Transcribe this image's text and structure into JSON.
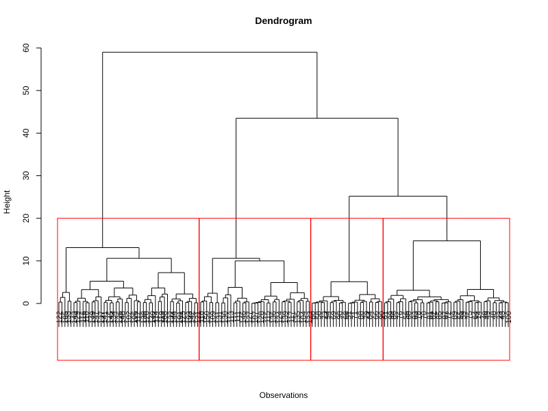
{
  "chart_data": {
    "type": "dendrogram",
    "title": "Dendrogram",
    "xlabel": "Observations",
    "ylabel": "Height",
    "ylim": [
      -5,
      60
    ],
    "yticks": [
      0,
      10,
      20,
      30,
      40,
      50,
      60
    ],
    "line_color": "#000000",
    "box_color": "#ff0000",
    "cut_height": 20,
    "n_leaves": 150,
    "merges": [
      {
        "height": 59.0,
        "description": "root merge of cluster 1 with clusters 2-4"
      },
      {
        "height": 43.5,
        "description": "cluster 2 merged with clusters 3-4"
      },
      {
        "height": 25.2,
        "description": "cluster 3 merged with cluster 4"
      },
      {
        "height": 13.1,
        "description": "top of cluster 1"
      },
      {
        "height": 10.6,
        "description": "top of cluster 2"
      },
      {
        "height": 5.1,
        "description": "top of cluster 3"
      },
      {
        "height": 14.7,
        "description": "top of cluster 4"
      }
    ],
    "clusters": [
      {
        "id": 1,
        "size": 47,
        "labels": [
          "122",
          "105",
          "133",
          "143",
          "129",
          "116",
          "110",
          "149",
          "147",
          "137",
          "141",
          "145",
          "134",
          "126",
          "148",
          "102",
          "106",
          "112",
          "138",
          "120",
          "140",
          "114",
          "119",
          "108",
          "132",
          "144",
          "101",
          "125",
          "103",
          "142",
          "121"
        ]
      },
      {
        "id": 2,
        "size": 37,
        "labels": [
          "118",
          "150",
          "109",
          "131",
          "130",
          "113",
          "111",
          "146",
          "127",
          "107",
          "128",
          "115",
          "136",
          "124",
          "139",
          "117",
          "135",
          "104",
          "123"
        ]
      },
      {
        "id": 3,
        "size": 24,
        "labels": [
          "80",
          "58",
          "73",
          "94",
          "69",
          "98",
          "68",
          "51",
          "71",
          "88",
          "79",
          "84",
          "66",
          "90"
        ]
      },
      {
        "id": 4,
        "size": 42,
        "labels": [
          "61",
          "99",
          "86",
          "76",
          "56",
          "60",
          "83",
          "78",
          "70",
          "81",
          "62",
          "85",
          "87",
          "72",
          "89",
          "55",
          "59",
          "75",
          "64",
          "14",
          "40",
          "49",
          "48",
          "23",
          "43",
          "100"
        ]
      }
    ]
  }
}
